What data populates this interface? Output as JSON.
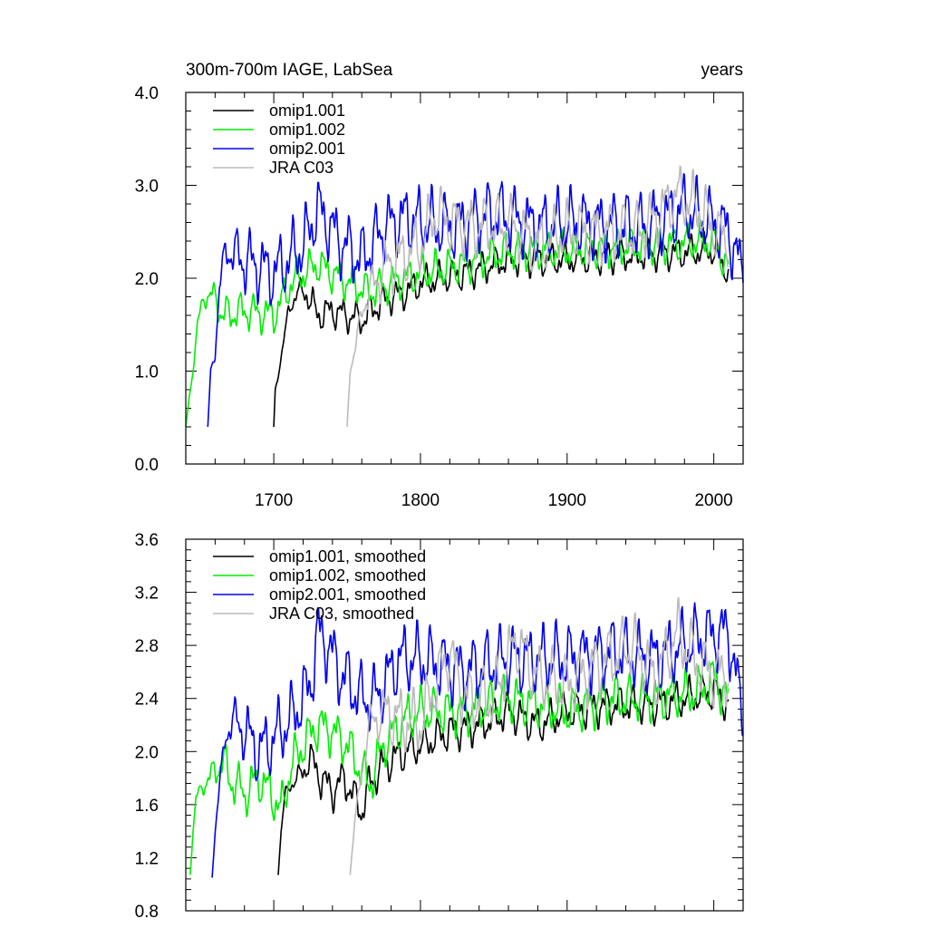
{
  "chart_data": [
    {
      "type": "line",
      "title_left": "300m-700m IAGE, LabSea",
      "title_right": "years",
      "xlabel": "",
      "ylabel": "",
      "xlim": [
        1640,
        2020
      ],
      "ylim": [
        0.0,
        4.0
      ],
      "x_tick_labels": [
        "1700",
        "1800",
        "1900",
        "2000"
      ],
      "x_tick_values": [
        1700,
        1800,
        1900,
        2000
      ],
      "y_tick_labels": [
        "0.0",
        "1.0",
        "2.0",
        "3.0",
        "4.0"
      ],
      "y_tick_values": [
        0,
        1,
        2,
        3,
        4
      ],
      "legend": "top-left",
      "series": [
        {
          "name": "omip1.001",
          "color": "#000000",
          "start": 1700,
          "end": 2010,
          "anchors": [
            [
              1700,
              0.4
            ],
            [
              1701,
              0.8
            ],
            [
              1703,
              0.95
            ],
            [
              1706,
              1.25
            ],
            [
              1710,
              1.65
            ],
            [
              1716,
              1.85
            ],
            [
              1722,
              1.85
            ],
            [
              1730,
              1.6
            ],
            [
              1740,
              1.65
            ],
            [
              1750,
              1.6
            ],
            [
              1760,
              1.55
            ],
            [
              1770,
              1.7
            ],
            [
              1780,
              1.8
            ],
            [
              1790,
              1.85
            ],
            [
              1800,
              1.95
            ],
            [
              1830,
              2.05
            ],
            [
              1860,
              2.2
            ],
            [
              1900,
              2.2
            ],
            [
              1950,
              2.25
            ],
            [
              2000,
              2.3
            ],
            [
              2010,
              2.05
            ]
          ],
          "amplitude": 0.22
        },
        {
          "name": "omip1.002",
          "color": "#00ee00",
          "start": 1640,
          "end": 2010,
          "anchors": [
            [
              1640,
              0.4
            ],
            [
              1643,
              0.8
            ],
            [
              1646,
              1.15
            ],
            [
              1648,
              1.5
            ],
            [
              1652,
              1.8
            ],
            [
              1660,
              1.8
            ],
            [
              1665,
              1.6
            ],
            [
              1680,
              1.65
            ],
            [
              1700,
              1.6
            ],
            [
              1712,
              1.95
            ],
            [
              1720,
              2.05
            ],
            [
              1730,
              2.15
            ],
            [
              1745,
              2.0
            ],
            [
              1765,
              1.85
            ],
            [
              1780,
              1.95
            ],
            [
              1800,
              2.05
            ],
            [
              1830,
              2.15
            ],
            [
              1860,
              2.3
            ],
            [
              1900,
              2.3
            ],
            [
              1950,
              2.35
            ],
            [
              2000,
              2.4
            ],
            [
              2010,
              2.1
            ]
          ],
          "amplitude": 0.25
        },
        {
          "name": "omip2.001",
          "color": "#0000ee",
          "start": 1655,
          "end": 2020,
          "anchors": [
            [
              1655,
              0.4
            ],
            [
              1657,
              1.0
            ],
            [
              1660,
              1.2
            ],
            [
              1663,
              1.9
            ],
            [
              1667,
              2.3
            ],
            [
              1680,
              2.2
            ],
            [
              1700,
              2.05
            ],
            [
              1720,
              2.35
            ],
            [
              1730,
              2.75
            ],
            [
              1745,
              2.4
            ],
            [
              1760,
              2.2
            ],
            [
              1775,
              2.55
            ],
            [
              1790,
              2.65
            ],
            [
              1800,
              2.6
            ],
            [
              1820,
              2.55
            ],
            [
              1850,
              2.7
            ],
            [
              1880,
              2.55
            ],
            [
              1900,
              2.6
            ],
            [
              1950,
              2.55
            ],
            [
              1980,
              2.75
            ],
            [
              2010,
              2.5
            ],
            [
              2020,
              2.05
            ]
          ],
          "amplitude": 0.45
        },
        {
          "name": "JRA C03",
          "color": "#bbbbbb",
          "start": 1750,
          "end": 2010,
          "anchors": [
            [
              1750,
              0.4
            ],
            [
              1752,
              1.0
            ],
            [
              1755,
              1.2
            ],
            [
              1760,
              1.65
            ],
            [
              1765,
              1.85
            ],
            [
              1775,
              2.1
            ],
            [
              1790,
              2.25
            ],
            [
              1800,
              2.35
            ],
            [
              1810,
              2.7
            ],
            [
              1820,
              2.6
            ],
            [
              1840,
              2.55
            ],
            [
              1860,
              2.6
            ],
            [
              1880,
              2.35
            ],
            [
              1900,
              2.5
            ],
            [
              1950,
              2.5
            ],
            [
              1975,
              2.9
            ],
            [
              1990,
              2.75
            ],
            [
              2000,
              2.55
            ],
            [
              2010,
              2.35
            ]
          ],
          "amplitude": 0.4
        }
      ]
    },
    {
      "type": "line",
      "title_left": "",
      "title_right": "",
      "xlabel": "",
      "ylabel": "",
      "xlim": [
        1640,
        2020
      ],
      "ylim": [
        0.8,
        3.6
      ],
      "x_tick_values": [
        1700,
        1800,
        1900,
        2000
      ],
      "y_tick_labels": [
        "0.8",
        "1.2",
        "1.6",
        "2.0",
        "2.4",
        "2.8",
        "3.2",
        "3.6"
      ],
      "y_tick_values": [
        0.8,
        1.2,
        1.6,
        2.0,
        2.4,
        2.8,
        3.2,
        3.6
      ],
      "legend": "top-left",
      "series": [
        {
          "name": "omip1.001, smoothed",
          "color": "#000000",
          "start": 1703,
          "end": 2010,
          "anchors": [
            [
              1703,
              1.07
            ],
            [
              1705,
              1.4
            ],
            [
              1708,
              1.7
            ],
            [
              1712,
              1.75
            ],
            [
              1720,
              1.85
            ],
            [
              1725,
              1.95
            ],
            [
              1732,
              1.8
            ],
            [
              1740,
              1.7
            ],
            [
              1748,
              1.8
            ],
            [
              1755,
              1.65
            ],
            [
              1760,
              1.55
            ],
            [
              1765,
              1.75
            ],
            [
              1775,
              1.9
            ],
            [
              1790,
              2.0
            ],
            [
              1800,
              2.05
            ],
            [
              1820,
              2.15
            ],
            [
              1840,
              2.2
            ],
            [
              1860,
              2.3
            ],
            [
              1880,
              2.2
            ],
            [
              1900,
              2.3
            ],
            [
              1930,
              2.35
            ],
            [
              1960,
              2.35
            ],
            [
              1980,
              2.4
            ],
            [
              2000,
              2.45
            ],
            [
              2010,
              2.35
            ]
          ],
          "amplitude": 0.18
        },
        {
          "name": "omip1.002, smoothed",
          "color": "#00ee00",
          "start": 1643,
          "end": 2010,
          "anchors": [
            [
              1643,
              1.07
            ],
            [
              1645,
              1.4
            ],
            [
              1647,
              1.65
            ],
            [
              1650,
              1.72
            ],
            [
              1655,
              1.78
            ],
            [
              1665,
              1.93
            ],
            [
              1670,
              1.8
            ],
            [
              1680,
              1.68
            ],
            [
              1690,
              1.8
            ],
            [
              1700,
              1.65
            ],
            [
              1705,
              1.55
            ],
            [
              1712,
              1.9
            ],
            [
              1720,
              2.05
            ],
            [
              1730,
              2.2
            ],
            [
              1740,
              2.15
            ],
            [
              1750,
              2.05
            ],
            [
              1765,
              1.75
            ],
            [
              1775,
              2.05
            ],
            [
              1790,
              2.25
            ],
            [
              1800,
              2.3
            ],
            [
              1830,
              2.3
            ],
            [
              1860,
              2.4
            ],
            [
              1900,
              2.3
            ],
            [
              1930,
              2.4
            ],
            [
              1960,
              2.4
            ],
            [
              1990,
              2.45
            ],
            [
              2000,
              2.55
            ],
            [
              2010,
              2.4
            ]
          ],
          "amplitude": 0.22
        },
        {
          "name": "omip2.001, smoothed",
          "color": "#0000ee",
          "start": 1658,
          "end": 2020,
          "anchors": [
            [
              1658,
              1.05
            ],
            [
              1660,
              1.4
            ],
            [
              1663,
              1.75
            ],
            [
              1667,
              2.1
            ],
            [
              1672,
              2.25
            ],
            [
              1680,
              2.15
            ],
            [
              1690,
              2.0
            ],
            [
              1700,
              2.1
            ],
            [
              1712,
              2.25
            ],
            [
              1725,
              2.5
            ],
            [
              1730,
              2.9
            ],
            [
              1737,
              2.8
            ],
            [
              1745,
              2.6
            ],
            [
              1760,
              2.4
            ],
            [
              1770,
              2.4
            ],
            [
              1785,
              2.7
            ],
            [
              1800,
              2.7
            ],
            [
              1830,
              2.6
            ],
            [
              1860,
              2.7
            ],
            [
              1900,
              2.7
            ],
            [
              1930,
              2.75
            ],
            [
              1960,
              2.7
            ],
            [
              1990,
              2.85
            ],
            [
              2010,
              2.9
            ],
            [
              2020,
              2.25
            ]
          ],
          "amplitude": 0.32
        },
        {
          "name": "JRA C03, smoothed",
          "color": "#bbbbbb",
          "start": 1752,
          "end": 2010,
          "anchors": [
            [
              1752,
              1.07
            ],
            [
              1755,
              1.45
            ],
            [
              1760,
              1.85
            ],
            [
              1765,
              2.2
            ],
            [
              1775,
              2.3
            ],
            [
              1785,
              2.25
            ],
            [
              1800,
              2.2
            ],
            [
              1810,
              2.5
            ],
            [
              1820,
              2.75
            ],
            [
              1830,
              2.4
            ],
            [
              1850,
              2.4
            ],
            [
              1865,
              2.85
            ],
            [
              1880,
              2.55
            ],
            [
              1900,
              2.5
            ],
            [
              1920,
              2.65
            ],
            [
              1945,
              2.8
            ],
            [
              1960,
              2.55
            ],
            [
              1975,
              2.9
            ],
            [
              1990,
              2.65
            ],
            [
              2000,
              2.6
            ],
            [
              2010,
              2.55
            ]
          ],
          "amplitude": 0.3
        }
      ]
    }
  ]
}
